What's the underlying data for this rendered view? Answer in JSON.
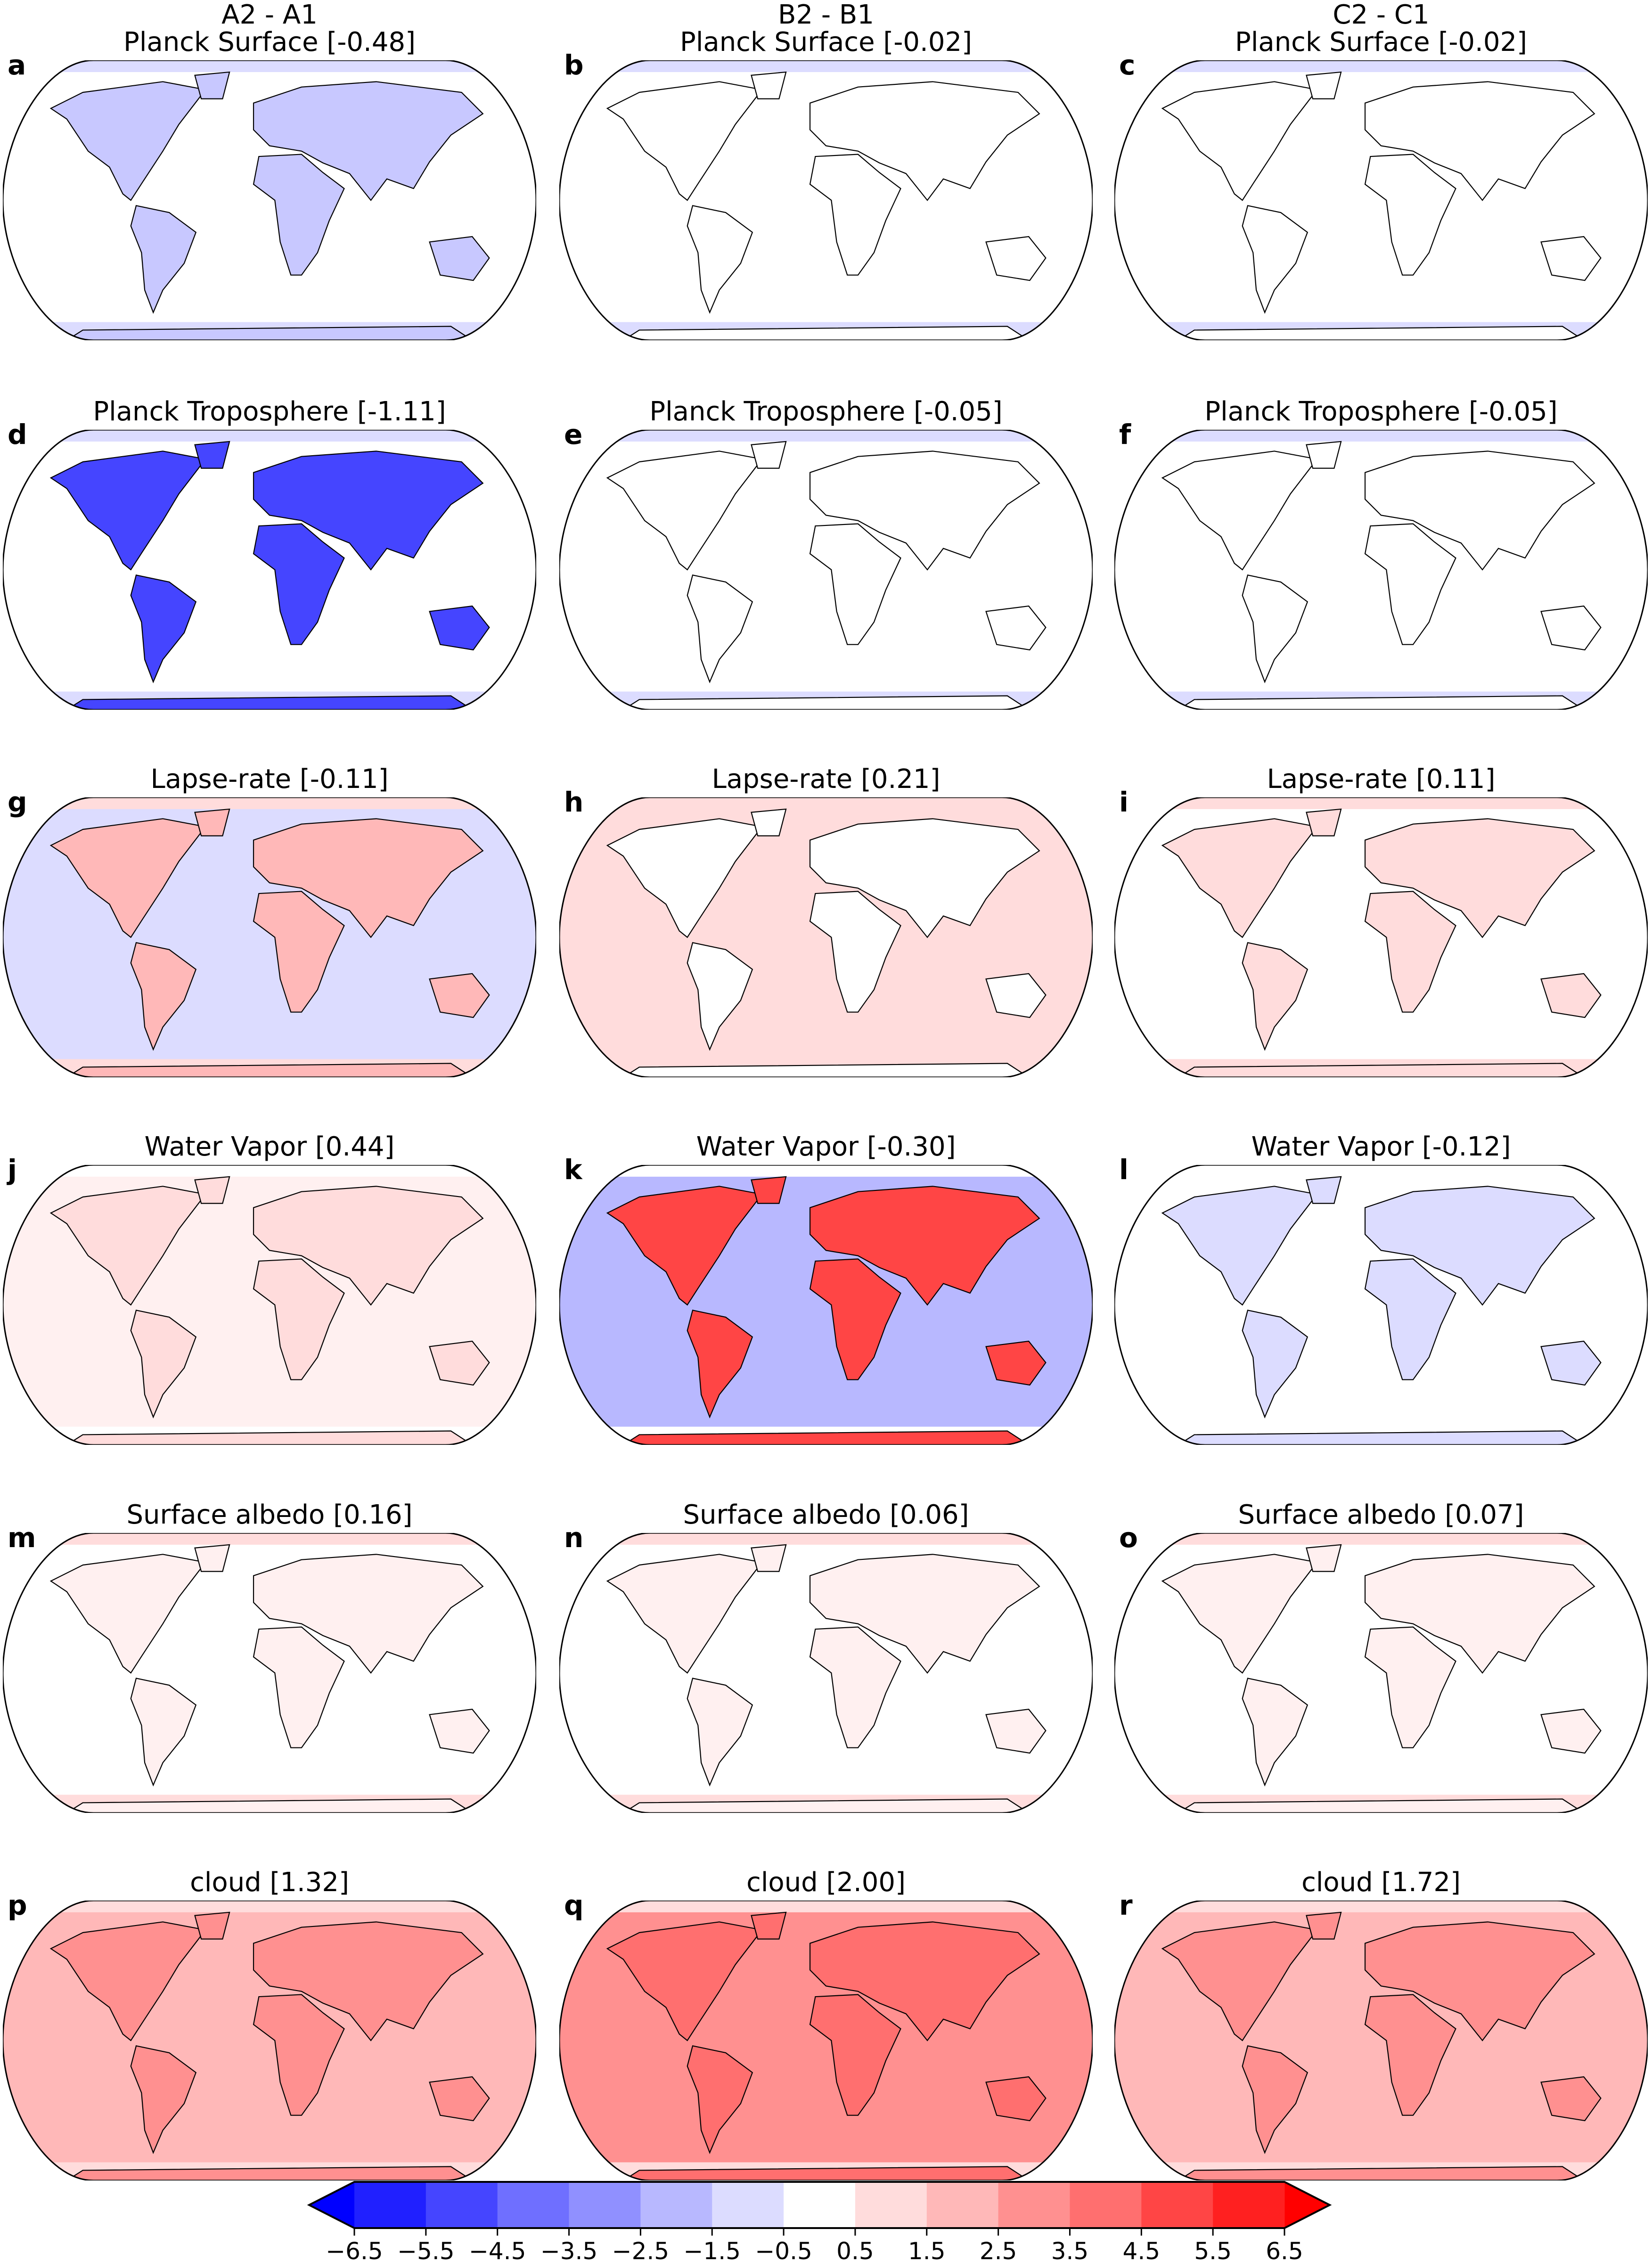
{
  "column_headers": [
    "A2 - A1",
    "B2 - B1",
    "C2 - C1"
  ],
  "panels": [
    {
      "letter": "a",
      "title": "Planck Surface [-0.48]",
      "land": "#c8c8ff",
      "ocean": "#ffffff",
      "polar": "#dcdcff"
    },
    {
      "letter": "b",
      "title": "Planck Surface [-0.02]",
      "land": "#ffffff",
      "ocean": "#ffffff",
      "polar": "#dcdcff"
    },
    {
      "letter": "c",
      "title": "Planck Surface [-0.02]",
      "land": "#ffffff",
      "ocean": "#ffffff",
      "polar": "#dcdcff"
    },
    {
      "letter": "d",
      "title": "Planck Troposphere [-1.11]",
      "land": "#4545ff",
      "ocean": "#ffffff",
      "polar": "#dcdcff"
    },
    {
      "letter": "e",
      "title": "Planck Troposphere [-0.05]",
      "land": "#ffffff",
      "ocean": "#ffffff",
      "polar": "#dcdcff"
    },
    {
      "letter": "f",
      "title": "Planck Troposphere [-0.05]",
      "land": "#ffffff",
      "ocean": "#ffffff",
      "polar": "#dcdcff"
    },
    {
      "letter": "g",
      "title": "Lapse-rate [-0.11]",
      "land": "#ffb8b8",
      "ocean": "#dcdcff",
      "polar": "#ffdcdc"
    },
    {
      "letter": "h",
      "title": "Lapse-rate [0.21]",
      "land": "#ffffff",
      "ocean": "#ffdcdc",
      "polar": "#ffdcdc"
    },
    {
      "letter": "i",
      "title": "Lapse-rate [0.11]",
      "land": "#ffdcdc",
      "ocean": "#ffffff",
      "polar": "#ffdcdc"
    },
    {
      "letter": "j",
      "title": "Water Vapor [0.44]",
      "land": "#ffdcdc",
      "ocean": "#fff0f0",
      "polar": "#ffffff"
    },
    {
      "letter": "k",
      "title": "Water Vapor [-0.30]",
      "land": "#ff4545",
      "ocean": "#b8b8ff",
      "polar": "#ffffff"
    },
    {
      "letter": "l",
      "title": "Water Vapor [-0.12]",
      "land": "#dcdcff",
      "ocean": "#ffffff",
      "polar": "#ffffff"
    },
    {
      "letter": "m",
      "title": "Surface albedo [0.16]",
      "land": "#fff0f0",
      "ocean": "#ffffff",
      "polar": "#ffdcdc"
    },
    {
      "letter": "n",
      "title": "Surface albedo [0.06]",
      "land": "#fff0f0",
      "ocean": "#ffffff",
      "polar": "#ffdcdc"
    },
    {
      "letter": "o",
      "title": "Surface albedo [0.07]",
      "land": "#fff0f0",
      "ocean": "#ffffff",
      "polar": "#ffdcdc"
    },
    {
      "letter": "p",
      "title": "cloud [1.32]",
      "land": "#ff9090",
      "ocean": "#ffb8b8",
      "polar": "#ffdcdc"
    },
    {
      "letter": "q",
      "title": "cloud [2.00]",
      "land": "#ff6f6f",
      "ocean": "#ff9090",
      "polar": "#ffdcdc"
    },
    {
      "letter": "r",
      "title": "cloud [1.72]",
      "land": "#ff9090",
      "ocean": "#ffb8b8",
      "polar": "#ffdcdc"
    }
  ],
  "colorbar": {
    "ticks": [
      "−6.5",
      "−5.5",
      "−4.5",
      "−3.5",
      "−2.5",
      "−1.5",
      "−0.5",
      "0.5",
      "1.5",
      "2.5",
      "3.5",
      "4.5",
      "5.5",
      "6.5"
    ],
    "colors": [
      "#2020ff",
      "#4545ff",
      "#6f6fff",
      "#9090ff",
      "#b8b8ff",
      "#dcdcff",
      "#ffffff",
      "#ffdcdc",
      "#ffb8b8",
      "#ff9090",
      "#ff6f6f",
      "#ff4545",
      "#ff2020"
    ],
    "extend_low": "#0000ff",
    "extend_high": "#ff0000"
  }
}
